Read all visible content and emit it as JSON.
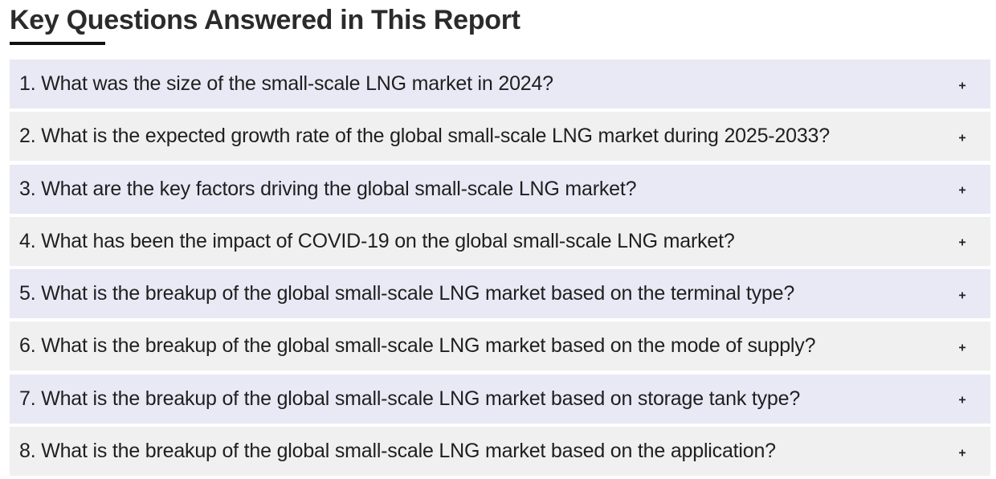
{
  "heading": "Key Questions Answered in This Report",
  "faq": {
    "toggle_symbol": "+",
    "items": [
      {
        "question": "1. What was the size of the small-scale LNG market in 2024?"
      },
      {
        "question": "2. What is the expected growth rate of the global small-scale LNG market during 2025-2033?"
      },
      {
        "question": "3. What are the key factors driving the global small-scale LNG market?"
      },
      {
        "question": "4. What has been the impact of COVID-19 on the global small-scale LNG market?"
      },
      {
        "question": "5. What is the breakup of the global small-scale LNG market based on the terminal type?"
      },
      {
        "question": "6. What is the breakup of the global small-scale LNG market based on the mode of supply?"
      },
      {
        "question": "7. What is the breakup of the global small-scale LNG market based on storage tank type?"
      },
      {
        "question": "8. What is the breakup of the global small-scale LNG market based on the application?"
      }
    ]
  },
  "colors": {
    "row_odd": "#e8e9f5",
    "row_even": "#f0f0f0",
    "heading_underline": "#111111"
  }
}
